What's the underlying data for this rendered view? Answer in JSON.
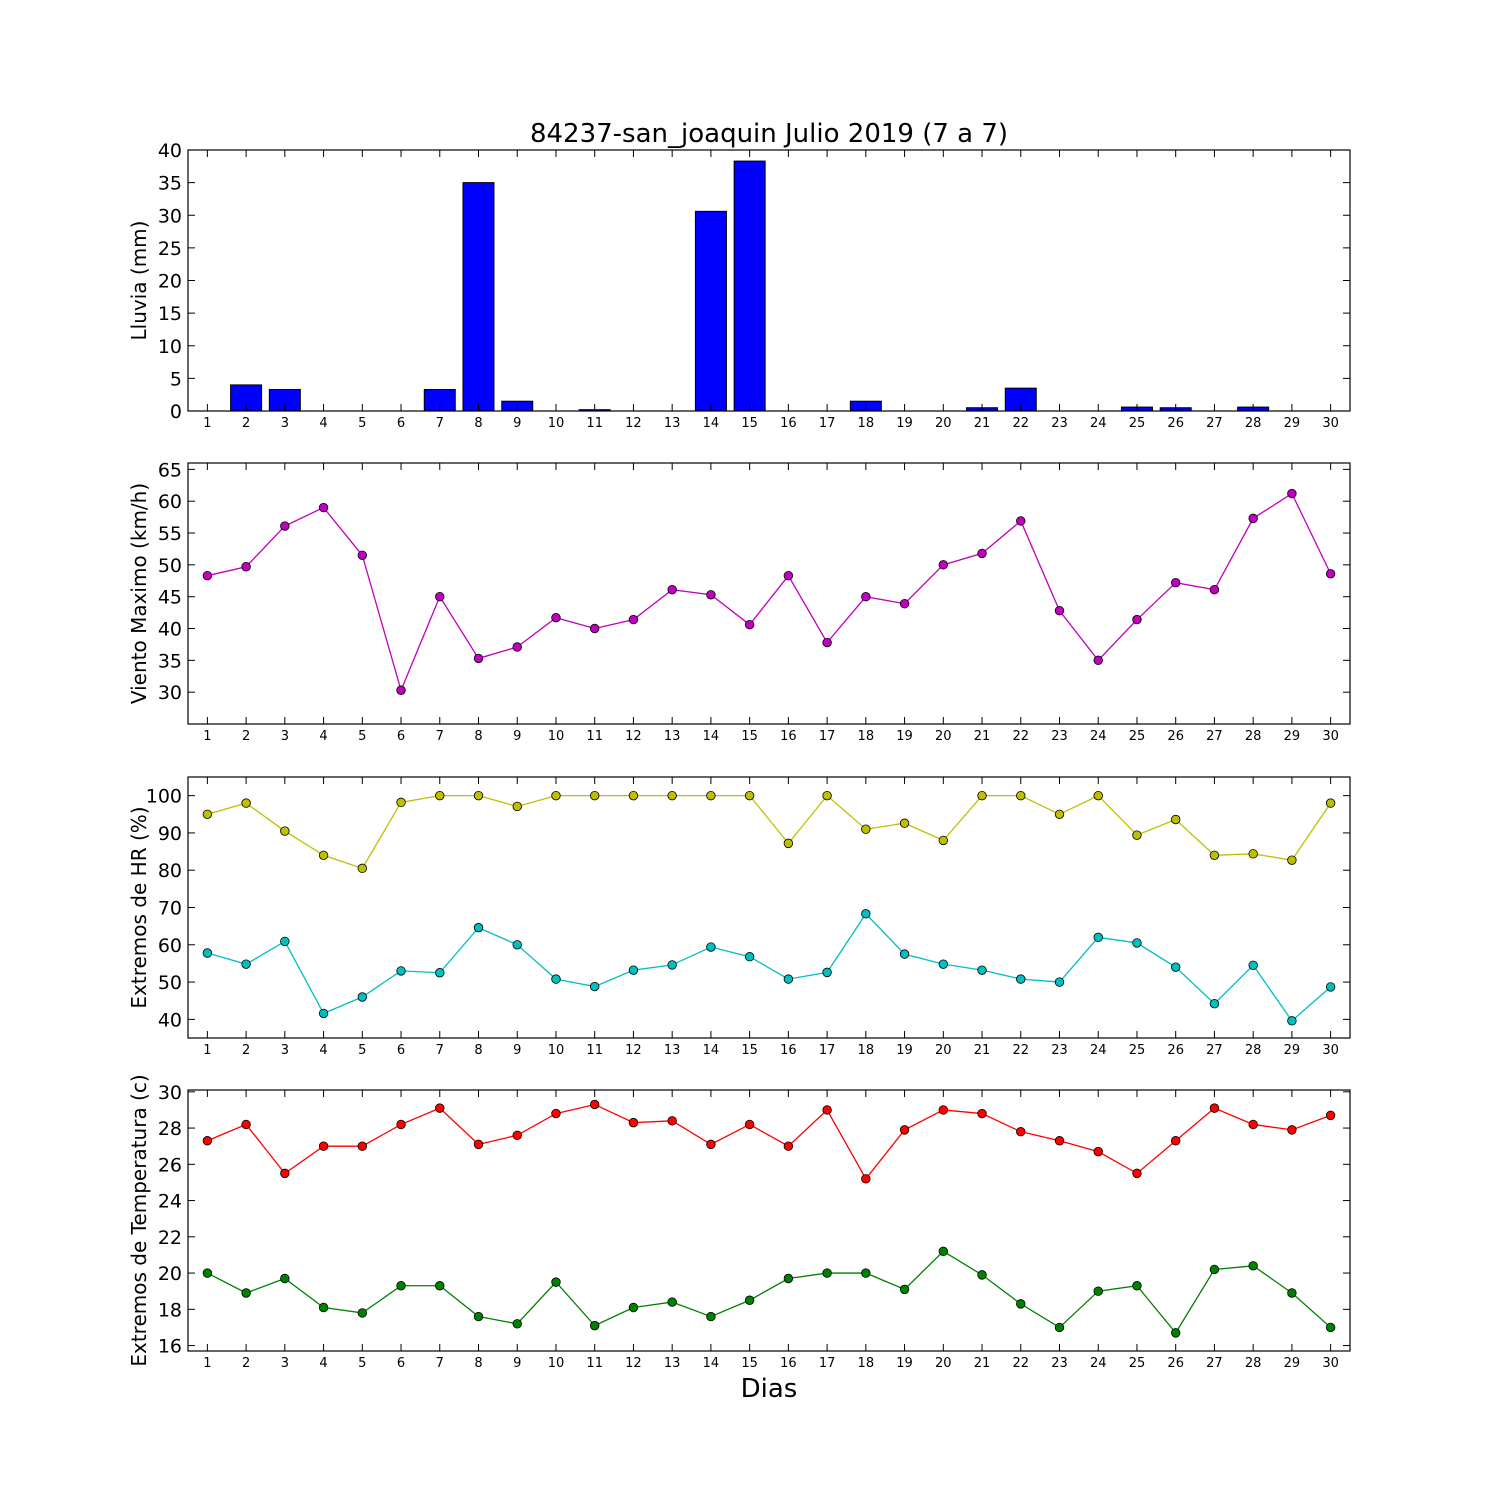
{
  "title": "84237-san_joaquin Julio 2019  (7 a 7)",
  "xlabel": "Dias",
  "chart_data": [
    {
      "type": "bar",
      "ylabel": "Lluvia (mm)",
      "x": [
        1,
        2,
        3,
        4,
        5,
        6,
        7,
        8,
        9,
        10,
        11,
        12,
        13,
        14,
        15,
        16,
        17,
        18,
        19,
        20,
        21,
        22,
        23,
        24,
        25,
        26,
        27,
        28,
        29,
        30
      ],
      "ylim": [
        0,
        40
      ],
      "yticks": [
        0,
        5,
        10,
        15,
        20,
        25,
        30,
        35,
        40
      ],
      "grid": false,
      "series": [
        {
          "color": "#0000ff",
          "values": [
            0,
            4.0,
            3.3,
            0,
            0,
            0,
            3.3,
            35.0,
            1.5,
            0,
            0.2,
            0,
            0,
            30.6,
            38.3,
            0,
            0,
            1.5,
            0,
            0,
            0.5,
            3.5,
            0,
            0,
            0.6,
            0.5,
            0,
            0.6,
            0,
            0
          ]
        }
      ]
    },
    {
      "type": "line",
      "ylabel": "Viento Maximo (km/h)",
      "x": [
        1,
        2,
        3,
        4,
        5,
        6,
        7,
        8,
        9,
        10,
        11,
        12,
        13,
        14,
        15,
        16,
        17,
        18,
        19,
        20,
        21,
        22,
        23,
        24,
        25,
        26,
        27,
        28,
        29,
        30
      ],
      "ylim": [
        25,
        66
      ],
      "yticks": [
        30,
        35,
        40,
        45,
        50,
        55,
        60,
        65
      ],
      "grid": false,
      "series": [
        {
          "color": "#bf00bf",
          "values": [
            48.3,
            49.7,
            56.1,
            59.0,
            51.5,
            30.3,
            45.0,
            35.3,
            37.1,
            41.7,
            40.0,
            41.4,
            46.1,
            45.3,
            40.6,
            48.3,
            37.8,
            45.0,
            43.9,
            50.0,
            51.8,
            56.9,
            42.8,
            35.0,
            41.4,
            47.2,
            46.1,
            57.3,
            61.2,
            48.6
          ]
        }
      ]
    },
    {
      "type": "line",
      "ylabel": "Extremos de HR (%)",
      "x": [
        1,
        2,
        3,
        4,
        5,
        6,
        7,
        8,
        9,
        10,
        11,
        12,
        13,
        14,
        15,
        16,
        17,
        18,
        19,
        20,
        21,
        22,
        23,
        24,
        25,
        26,
        27,
        28,
        29,
        30
      ],
      "ylim": [
        35,
        105
      ],
      "yticks": [
        40,
        50,
        60,
        70,
        80,
        90,
        100
      ],
      "grid": false,
      "series": [
        {
          "color": "#bfbf00",
          "values": [
            95,
            98,
            90.5,
            84,
            80.5,
            98.2,
            100,
            100,
            97.1,
            100,
            100,
            100,
            100,
            100,
            100,
            87.2,
            100,
            91,
            92.6,
            88,
            100,
            100,
            95,
            100,
            89.4,
            93.6,
            84,
            84.4,
            82.7,
            98
          ]
        },
        {
          "color": "#00bfbf",
          "values": [
            57.8,
            54.8,
            60.9,
            41.6,
            46,
            53,
            52.5,
            64.6,
            60,
            50.8,
            48.8,
            53.2,
            54.6,
            59.4,
            56.8,
            50.8,
            52.6,
            68.3,
            57.5,
            54.8,
            53.2,
            50.8,
            50,
            62,
            60.5,
            54,
            44.2,
            54.5,
            39.6,
            48.7
          ]
        }
      ]
    },
    {
      "type": "line",
      "ylabel": "Extremos de Temperatura (c)",
      "x": [
        1,
        2,
        3,
        4,
        5,
        6,
        7,
        8,
        9,
        10,
        11,
        12,
        13,
        14,
        15,
        16,
        17,
        18,
        19,
        20,
        21,
        22,
        23,
        24,
        25,
        26,
        27,
        28,
        29,
        30
      ],
      "ylim": [
        15.7,
        30.1
      ],
      "yticks": [
        16,
        18,
        20,
        22,
        24,
        26,
        28,
        30
      ],
      "grid": false,
      "series": [
        {
          "color": "#ff0000",
          "values": [
            27.3,
            28.2,
            25.5,
            27.0,
            27.0,
            28.2,
            29.1,
            27.1,
            27.6,
            28.8,
            29.3,
            28.3,
            28.4,
            27.1,
            28.2,
            27.0,
            29.0,
            25.2,
            27.9,
            29.0,
            28.8,
            27.8,
            27.3,
            26.7,
            25.5,
            27.3,
            29.1,
            28.2,
            27.9,
            28.7
          ]
        },
        {
          "color": "#008000",
          "values": [
            20.0,
            18.9,
            19.7,
            18.1,
            17.8,
            19.3,
            19.3,
            17.6,
            17.2,
            19.5,
            17.1,
            18.1,
            18.4,
            17.6,
            18.5,
            19.7,
            20.0,
            20.0,
            19.1,
            21.2,
            19.9,
            18.3,
            17.0,
            19.0,
            19.3,
            16.7,
            20.2,
            20.4,
            18.9,
            17.0
          ]
        }
      ]
    }
  ]
}
